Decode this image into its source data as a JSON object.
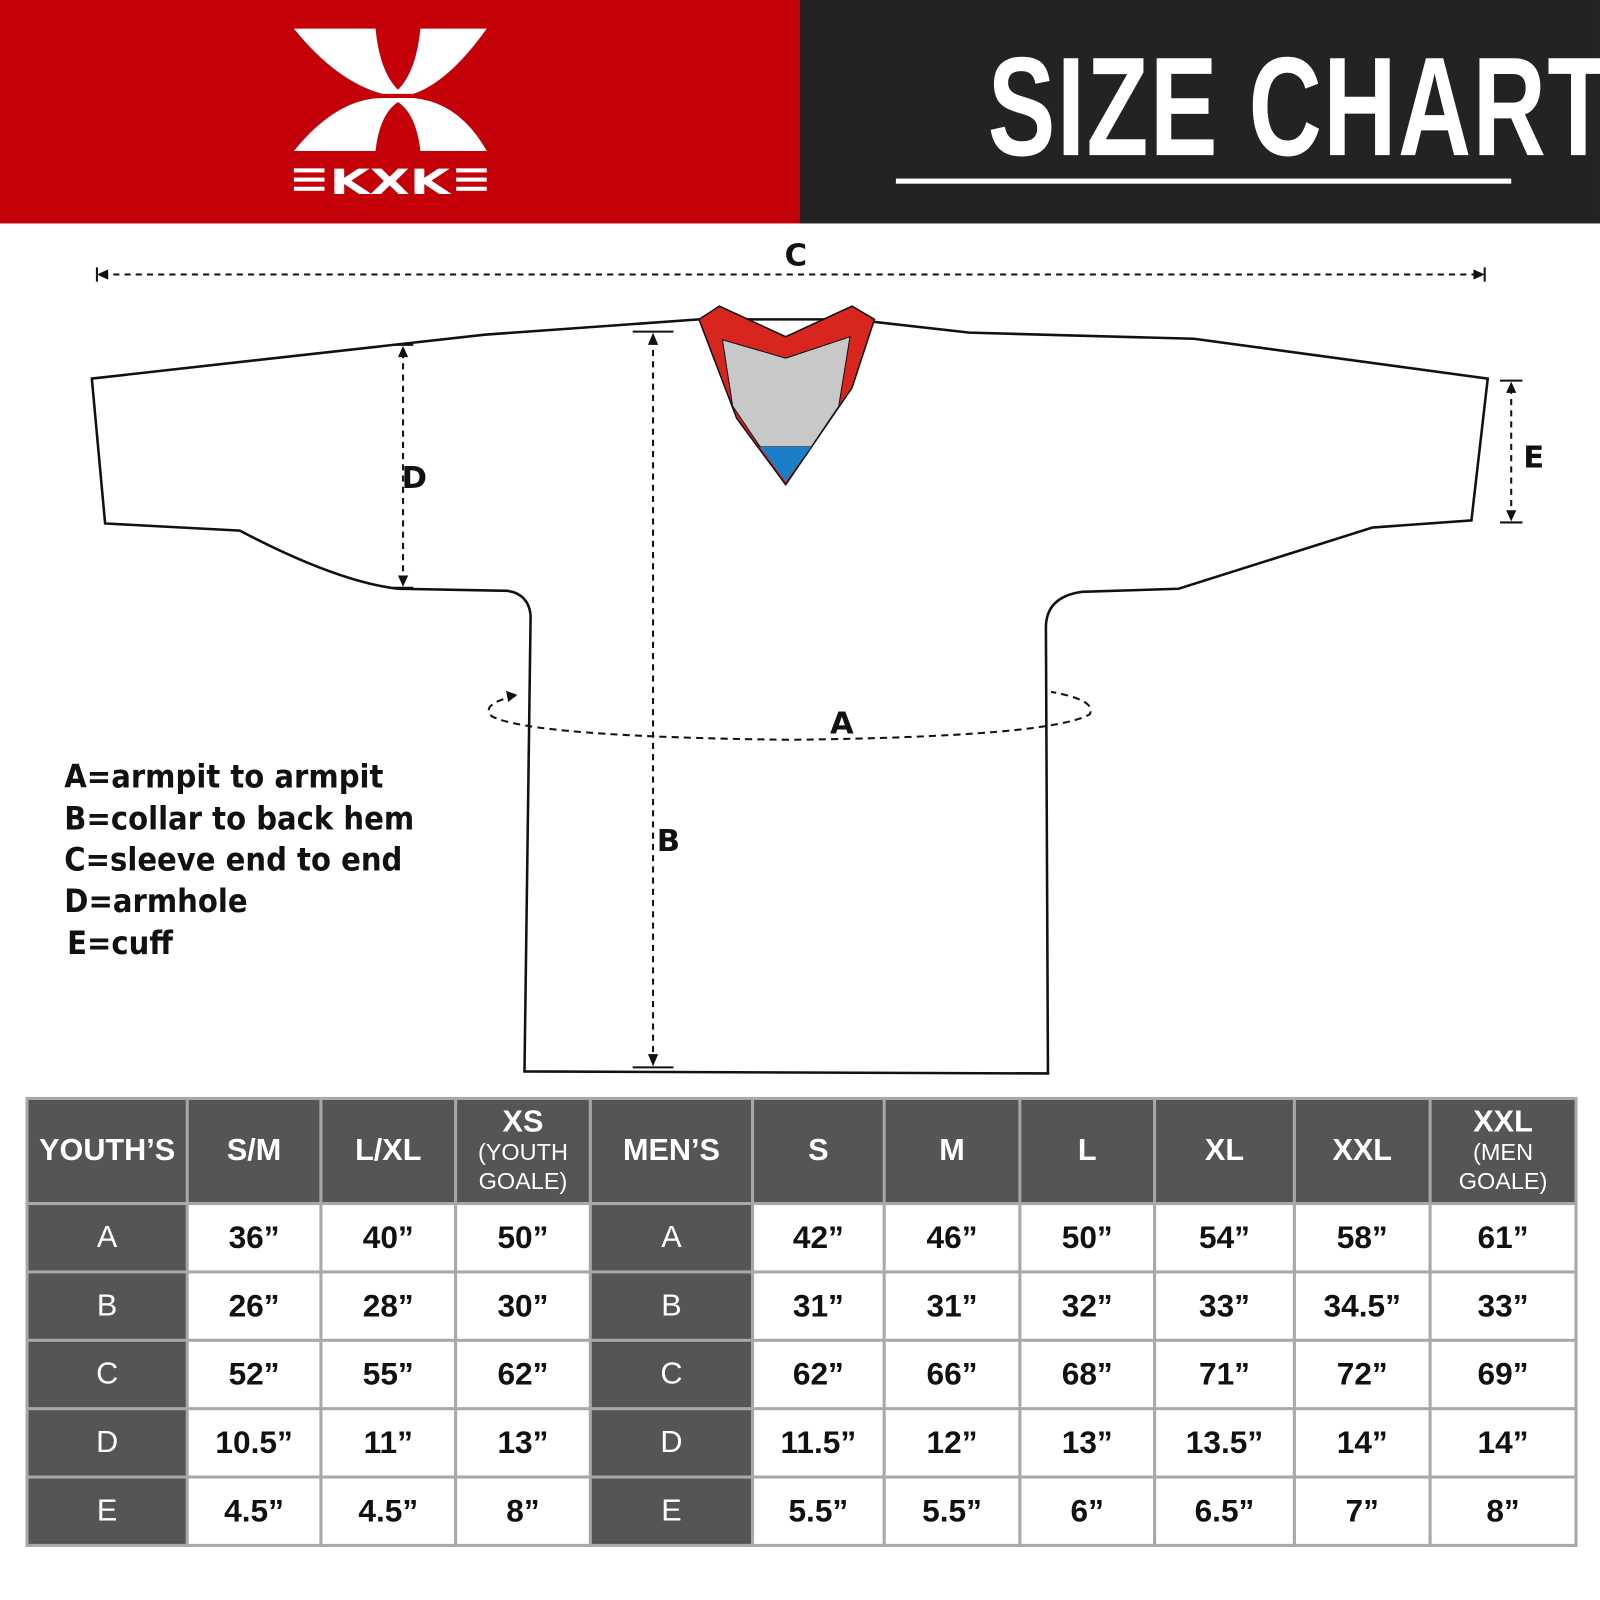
{
  "brand": {
    "name": "KXK",
    "logo_color": "#c40008"
  },
  "header": {
    "title": "SIZE CHART"
  },
  "diagram": {
    "labels": {
      "a": "A",
      "b": "B",
      "c": "C",
      "d": "D",
      "e": "E"
    },
    "colors": {
      "collar": "#d8261e",
      "inner": "#c8c8c8",
      "tag": "#1a7fc8"
    }
  },
  "legend": [
    "A=armpit to armpit",
    "B=collar to back hem",
    "C=sleeve end to end",
    "D=armhole",
    "E=cuff"
  ],
  "table": {
    "youth": {
      "header": "YOUTH’S",
      "columns": [
        {
          "main": "S/M",
          "sub": ""
        },
        {
          "main": "L/XL",
          "sub": ""
        },
        {
          "main": "XS",
          "sub": "(YOUTH GOALE)"
        }
      ]
    },
    "men": {
      "header": "MEN’S",
      "columns": [
        {
          "main": "S",
          "sub": ""
        },
        {
          "main": "M",
          "sub": ""
        },
        {
          "main": "L",
          "sub": ""
        },
        {
          "main": "XL",
          "sub": ""
        },
        {
          "main": "XXL",
          "sub": ""
        },
        {
          "main": "XXL",
          "sub": "(MEN GOALE)"
        }
      ]
    },
    "rows": [
      {
        "label": "A",
        "youth": [
          "36”",
          "40”",
          "50”"
        ],
        "men": [
          "42”",
          "46”",
          "50”",
          "54”",
          "58”",
          "61”"
        ]
      },
      {
        "label": "B",
        "youth": [
          "26”",
          "28”",
          "30”"
        ],
        "men": [
          "31”",
          "31”",
          "32”",
          "33”",
          "34.5”",
          "33”"
        ]
      },
      {
        "label": "C",
        "youth": [
          "52”",
          "55”",
          "62”"
        ],
        "men": [
          "62”",
          "66”",
          "68”",
          "71”",
          "72”",
          "69”"
        ]
      },
      {
        "label": "D",
        "youth": [
          "10.5”",
          "11”",
          "13”"
        ],
        "men": [
          "11.5”",
          "12”",
          "13”",
          "13.5”",
          "14”",
          "14”"
        ]
      },
      {
        "label": "E",
        "youth": [
          "4.5”",
          "4.5”",
          "8”"
        ],
        "men": [
          "5.5”",
          "5.5”",
          "6”",
          "6.5”",
          "7”",
          "8”"
        ]
      }
    ]
  }
}
